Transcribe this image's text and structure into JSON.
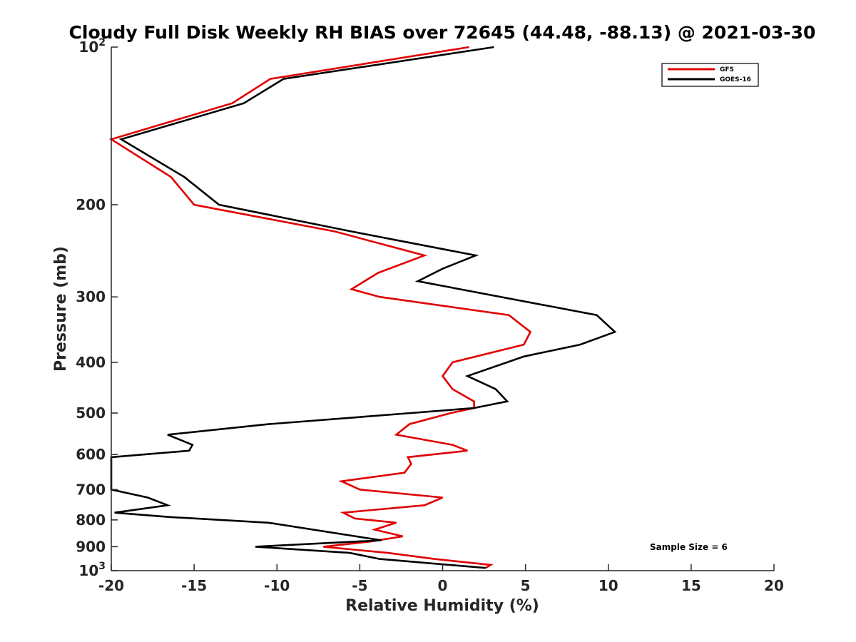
{
  "chart_data": {
    "type": "line",
    "title": "Cloudy Full Disk Weekly RH BIAS over 72645 (44.48, -88.13) @ 2021-03-30",
    "xlabel": "Relative Humidity (%)",
    "ylabel": "Pressure (mb)",
    "xlim": [
      -20,
      20
    ],
    "ylim": [
      100,
      1000
    ],
    "y_scale": "log",
    "y_reversed": true,
    "grid": false,
    "legend_position": "top-right",
    "xticks": [
      -20,
      -15,
      -10,
      -5,
      0,
      5,
      10,
      15,
      20
    ],
    "yticks": [
      {
        "value": 100,
        "base": "10",
        "exp": "2"
      },
      {
        "value": 200,
        "label": "200"
      },
      {
        "value": 300,
        "label": "300"
      },
      {
        "value": 400,
        "label": "400"
      },
      {
        "value": 500,
        "label": "500"
      },
      {
        "value": 600,
        "label": "600"
      },
      {
        "value": 700,
        "label": "700"
      },
      {
        "value": 800,
        "label": "800"
      },
      {
        "value": 900,
        "label": "900"
      },
      {
        "value": 1000,
        "base": "10",
        "exp": "3"
      }
    ],
    "annotation": "Sample Size = 6",
    "series": [
      {
        "name": "GFS",
        "color": "#e00000",
        "points": [
          [
            1.6,
            100
          ],
          [
            -10.4,
            115
          ],
          [
            -12.7,
            128
          ],
          [
            -20.0,
            150
          ],
          [
            -16.4,
            177
          ],
          [
            -15.0,
            200
          ],
          [
            -6.5,
            225
          ],
          [
            -1.1,
            250
          ],
          [
            -3.9,
            270
          ],
          [
            -5.5,
            290
          ],
          [
            -3.8,
            300
          ],
          [
            4.0,
            325
          ],
          [
            5.3,
            350
          ],
          [
            4.9,
            370
          ],
          [
            0.6,
            400
          ],
          [
            0.0,
            425
          ],
          [
            0.6,
            450
          ],
          [
            1.9,
            475
          ],
          [
            1.9,
            489
          ],
          [
            0.5,
            500
          ],
          [
            -2.0,
            525
          ],
          [
            -2.8,
            550
          ],
          [
            0.6,
            575
          ],
          [
            1.5,
            590
          ],
          [
            -2.1,
            607
          ],
          [
            -1.9,
            625
          ],
          [
            -2.3,
            650
          ],
          [
            -6.1,
            675
          ],
          [
            -5.0,
            700
          ],
          [
            0.0,
            725
          ],
          [
            -1.1,
            750
          ],
          [
            -6.0,
            775
          ],
          [
            -5.3,
            795
          ],
          [
            -2.8,
            810
          ],
          [
            -4.1,
            835
          ],
          [
            -2.4,
            860
          ],
          [
            -4.4,
            880
          ],
          [
            -7.2,
            900
          ],
          [
            -3.3,
            925
          ],
          [
            -0.5,
            950
          ],
          [
            2.9,
            975
          ],
          [
            2.6,
            988
          ]
        ]
      },
      {
        "name": "GOES-16",
        "color": "#000000",
        "points": [
          [
            3.1,
            100
          ],
          [
            -9.6,
            115
          ],
          [
            -12.0,
            128
          ],
          [
            -19.4,
            150
          ],
          [
            -15.6,
            177
          ],
          [
            -13.5,
            200
          ],
          [
            -5.5,
            225
          ],
          [
            2.0,
            250
          ],
          [
            0.0,
            265
          ],
          [
            -1.5,
            280
          ],
          [
            9.3,
            325
          ],
          [
            10.4,
            350
          ],
          [
            8.3,
            370
          ],
          [
            4.9,
            390
          ],
          [
            1.5,
            425
          ],
          [
            3.2,
            450
          ],
          [
            3.9,
            475
          ],
          [
            1.9,
            489
          ],
          [
            -1.9,
            500
          ],
          [
            -10.5,
            525
          ],
          [
            -16.6,
            550
          ],
          [
            -15.1,
            575
          ],
          [
            -15.3,
            590
          ],
          [
            -20.0,
            607
          ],
          [
            -20.0,
            700
          ],
          [
            -17.8,
            725
          ],
          [
            -16.6,
            750
          ],
          [
            -19.8,
            775
          ],
          [
            -16.4,
            790
          ],
          [
            -10.5,
            810
          ],
          [
            -3.7,
            875
          ],
          [
            -11.3,
            900
          ],
          [
            -5.6,
            925
          ],
          [
            -3.8,
            950
          ],
          [
            2.6,
            988
          ]
        ]
      }
    ]
  }
}
